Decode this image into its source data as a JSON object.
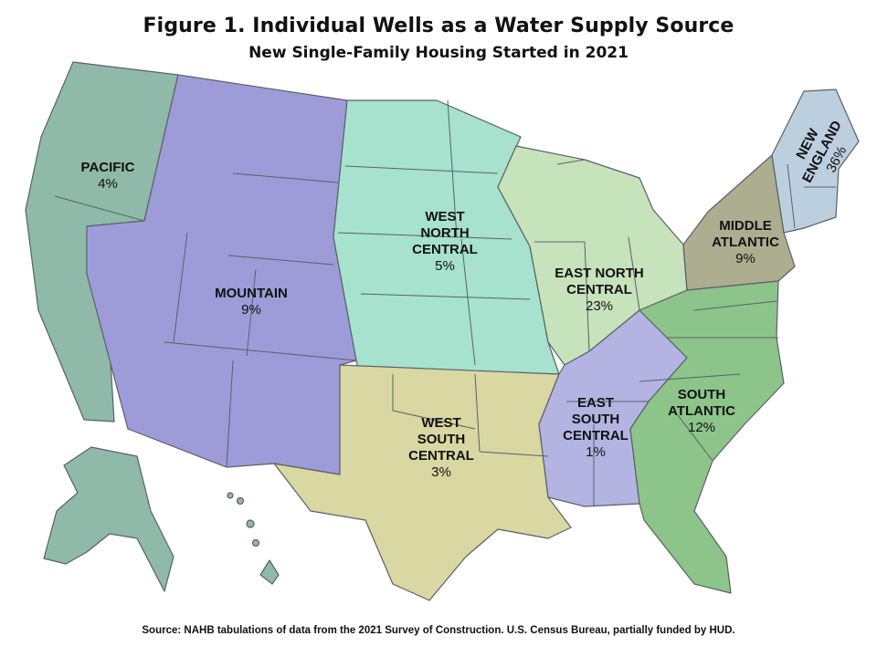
{
  "title": "Figure 1. Individual Wells as a Water Supply Source",
  "subtitle": "New Single-Family Housing Started in 2021",
  "source": "Source: NAHB tabulations of data from the 2021  Survey of Construction.  U.S. Census  Bureau, partially funded by HUD.",
  "regions": [
    {
      "id": "pacific",
      "name_lines": [
        "PACIFIC"
      ],
      "value": "4%",
      "color": "#8fb9a8"
    },
    {
      "id": "mountain",
      "name_lines": [
        "MOUNTAIN"
      ],
      "value": "9%",
      "color": "#9e9cd8"
    },
    {
      "id": "west-north-central",
      "name_lines": [
        "WEST",
        "NORTH",
        "CENTRAL"
      ],
      "value": "5%",
      "color": "#a6e2cd"
    },
    {
      "id": "east-north-central",
      "name_lines": [
        "EAST NORTH",
        "CENTRAL"
      ],
      "value": "23%",
      "color": "#c6e3bb"
    },
    {
      "id": "middle-atlantic",
      "name_lines": [
        "MIDDLE",
        "ATLANTIC"
      ],
      "value": "9%",
      "color": "#adad90"
    },
    {
      "id": "new-england",
      "name_lines": [
        "NEW",
        "ENGLAND"
      ],
      "value": "36%",
      "color": "#bccfdf"
    },
    {
      "id": "west-south-central",
      "name_lines": [
        "WEST",
        "SOUTH",
        "CENTRAL"
      ],
      "value": "3%",
      "color": "#d9d7a2"
    },
    {
      "id": "east-south-central",
      "name_lines": [
        "EAST",
        "SOUTH",
        "CENTRAL"
      ],
      "value": "1%",
      "color": "#b4b4e2"
    },
    {
      "id": "south-atlantic",
      "name_lines": [
        "SOUTH",
        "ATLANTIC"
      ],
      "value": "12%",
      "color": "#8dc48a"
    }
  ]
}
